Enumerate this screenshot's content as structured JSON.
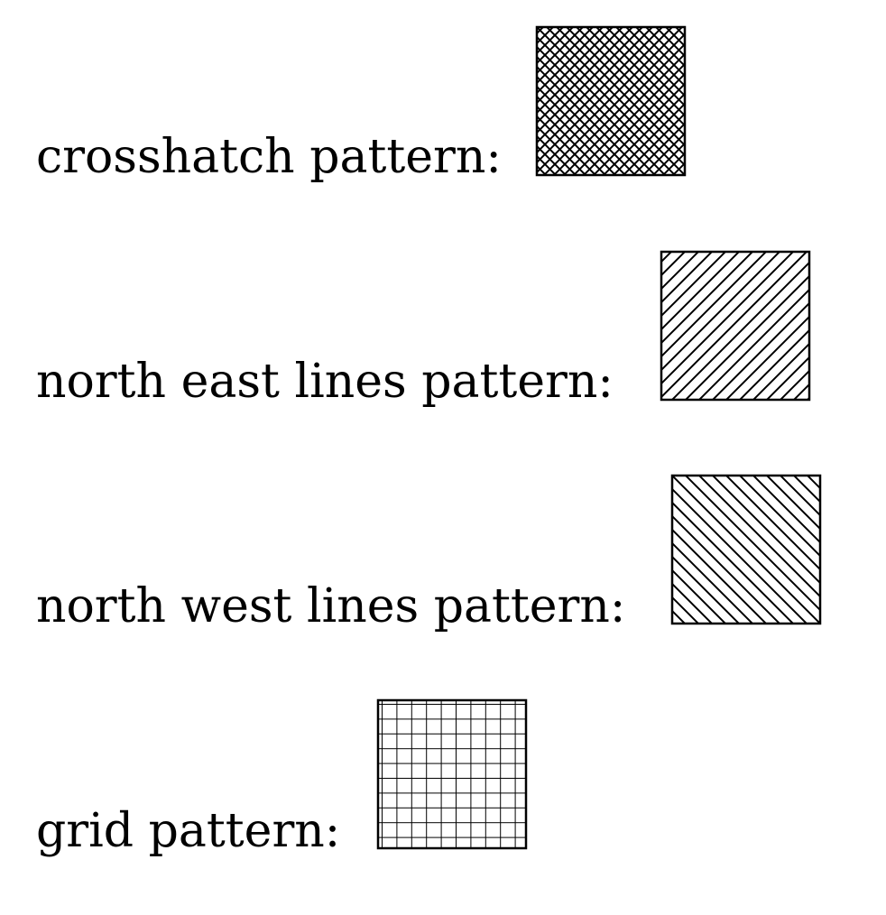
{
  "rows": [
    {
      "label": "crosshatch pattern:",
      "pattern": "crosshatch"
    },
    {
      "label": "north east lines pattern:",
      "pattern": "north-east-lines"
    },
    {
      "label": "north west lines pattern:",
      "pattern": "north-west-lines"
    },
    {
      "label": "grid pattern:",
      "pattern": "grid"
    }
  ],
  "colors": {
    "ink": "#000000",
    "background": "#ffffff"
  }
}
